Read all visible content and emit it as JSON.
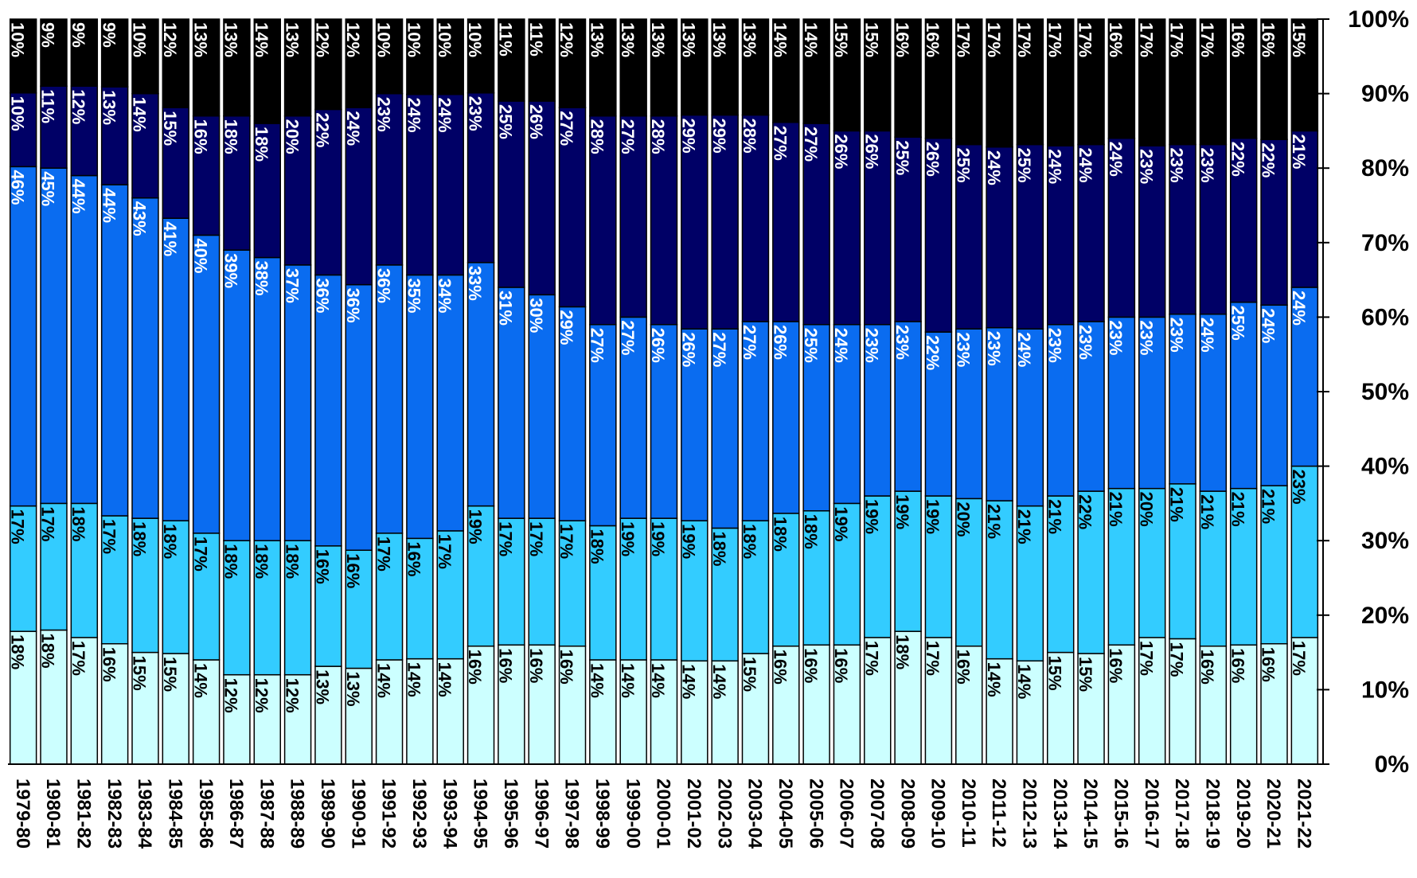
{
  "chart_data": {
    "type": "bar",
    "stacked": true,
    "percent": true,
    "title": "",
    "xlabel": "",
    "ylabel": "",
    "ylim": [
      0,
      100
    ],
    "yticks": [
      "0%",
      "10%",
      "20%",
      "30%",
      "40%",
      "50%",
      "60%",
      "70%",
      "80%",
      "90%",
      "100%"
    ],
    "grid": false,
    "categories": [
      "1979-80",
      "1980-81",
      "1981-82",
      "1982-83",
      "1983-84",
      "1984-85",
      "1985-86",
      "1986-87",
      "1987-88",
      "1988-89",
      "1989-90",
      "1990-91",
      "1991-92",
      "1992-93",
      "1993-94",
      "1994-95",
      "1995-96",
      "1996-97",
      "1997-98",
      "1998-99",
      "1999-00",
      "2000-01",
      "2001-02",
      "2002-03",
      "2003-04",
      "2004-05",
      "2005-06",
      "2006-07",
      "2007-08",
      "2008-09",
      "2009-10",
      "2010-11",
      "2011-12",
      "2012-13",
      "2013-14",
      "2014-15",
      "2015-16",
      "2016-17",
      "2017-18",
      "2018-19",
      "2019-20",
      "2020-21",
      "2021-22"
    ],
    "series": [
      {
        "color": "#ccffff",
        "label_color": "#000000",
        "values": [
          18,
          18,
          17,
          16,
          15,
          15,
          14,
          12,
          12,
          12,
          13,
          13,
          14,
          14,
          14,
          16,
          16,
          16,
          16,
          14,
          14,
          14,
          14,
          14,
          15,
          16,
          16,
          16,
          17,
          18,
          17,
          16,
          14,
          14,
          15,
          15,
          16,
          17,
          17,
          16,
          16,
          16,
          17
        ]
      },
      {
        "color": "#33ccff",
        "label_color": "#000000",
        "values": [
          17,
          17,
          18,
          17,
          18,
          18,
          17,
          18,
          18,
          18,
          16,
          16,
          17,
          16,
          17,
          19,
          17,
          17,
          17,
          18,
          19,
          19,
          19,
          18,
          18,
          18,
          18,
          19,
          19,
          19,
          19,
          20,
          21,
          21,
          21,
          22,
          21,
          20,
          21,
          21,
          21,
          21,
          23
        ]
      },
      {
        "color": "#0a6cf0",
        "label_color": "#ffffff",
        "values": [
          46,
          45,
          44,
          44,
          43,
          41,
          40,
          39,
          38,
          37,
          36,
          36,
          36,
          35,
          34,
          33,
          31,
          30,
          29,
          27,
          27,
          26,
          26,
          27,
          27,
          26,
          25,
          24,
          23,
          23,
          22,
          23,
          23,
          24,
          23,
          23,
          23,
          23,
          23,
          24,
          25,
          24,
          24
        ]
      },
      {
        "color": "#000066",
        "label_color": "#ffffff",
        "values": [
          10,
          11,
          12,
          13,
          14,
          15,
          16,
          18,
          18,
          20,
          22,
          24,
          23,
          24,
          24,
          23,
          25,
          26,
          27,
          28,
          27,
          28,
          29,
          29,
          28,
          27,
          27,
          26,
          26,
          25,
          26,
          25,
          24,
          25,
          24,
          24,
          24,
          23,
          23,
          23,
          22,
          22,
          21
        ]
      },
      {
        "color": "#000000",
        "label_color": "#ffffff",
        "values": [
          10,
          9,
          9,
          9,
          10,
          12,
          13,
          13,
          14,
          13,
          12,
          12,
          10,
          10,
          10,
          10,
          11,
          11,
          12,
          13,
          13,
          13,
          13,
          13,
          13,
          14,
          14,
          15,
          15,
          16,
          16,
          17,
          17,
          17,
          17,
          17,
          16,
          17,
          17,
          17,
          16,
          16,
          15
        ]
      }
    ]
  }
}
